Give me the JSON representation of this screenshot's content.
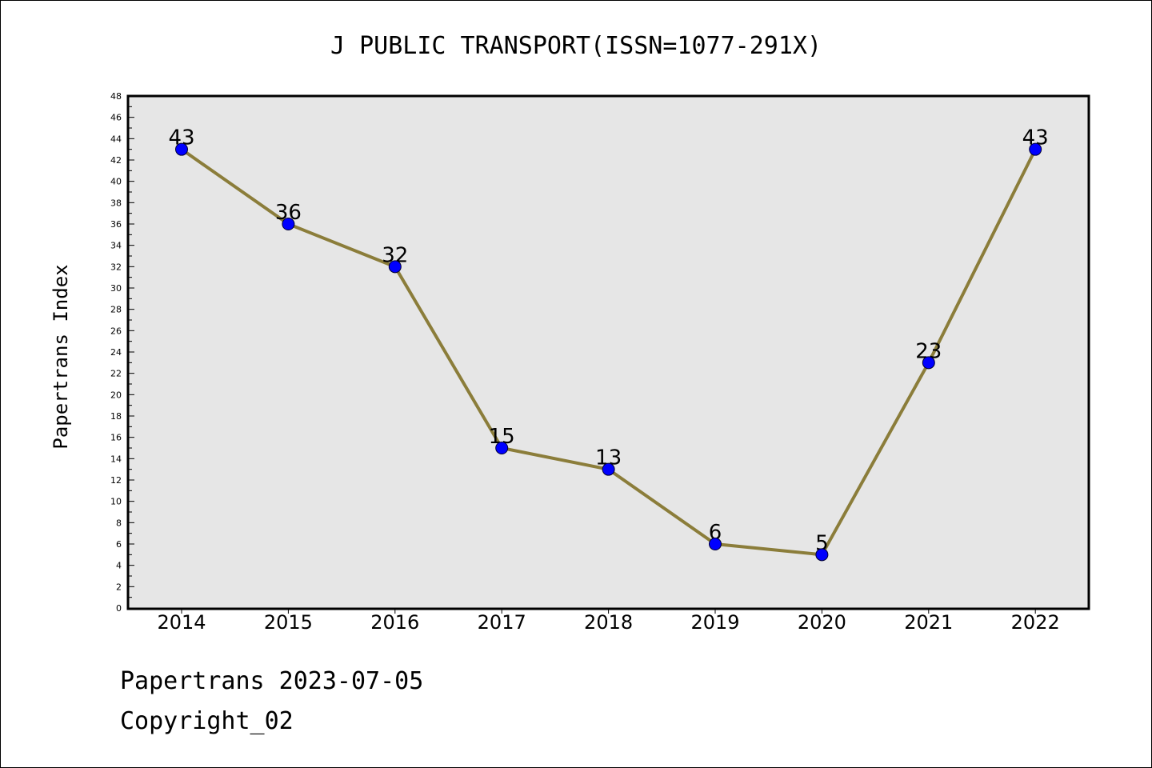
{
  "chart_data": {
    "type": "line",
    "title": "J PUBLIC TRANSPORT(ISSN=1077-291X)",
    "xlabel": "",
    "ylabel": "Papertrans Index",
    "categories": [
      "2014",
      "2015",
      "2016",
      "2017",
      "2018",
      "2019",
      "2020",
      "2021",
      "2022"
    ],
    "series": [
      {
        "values": [
          43,
          36,
          32,
          15,
          13,
          6,
          5,
          23,
          43
        ]
      }
    ],
    "ylim": [
      0,
      48
    ],
    "yticks": [
      0,
      2,
      4,
      6,
      8,
      10,
      12,
      14,
      16,
      18,
      20,
      22,
      24,
      26,
      28,
      30,
      32,
      34,
      36,
      38,
      40,
      42,
      44,
      46,
      48
    ],
    "data_labels": true,
    "grid": false,
    "legend": "none",
    "colors": {
      "line": "#8b7d3a",
      "marker": "#0000ff",
      "plot_background": "#e6e6e6"
    }
  },
  "footer": {
    "line1": "Papertrans 2023-07-05",
    "line2": "Copyright_02"
  }
}
